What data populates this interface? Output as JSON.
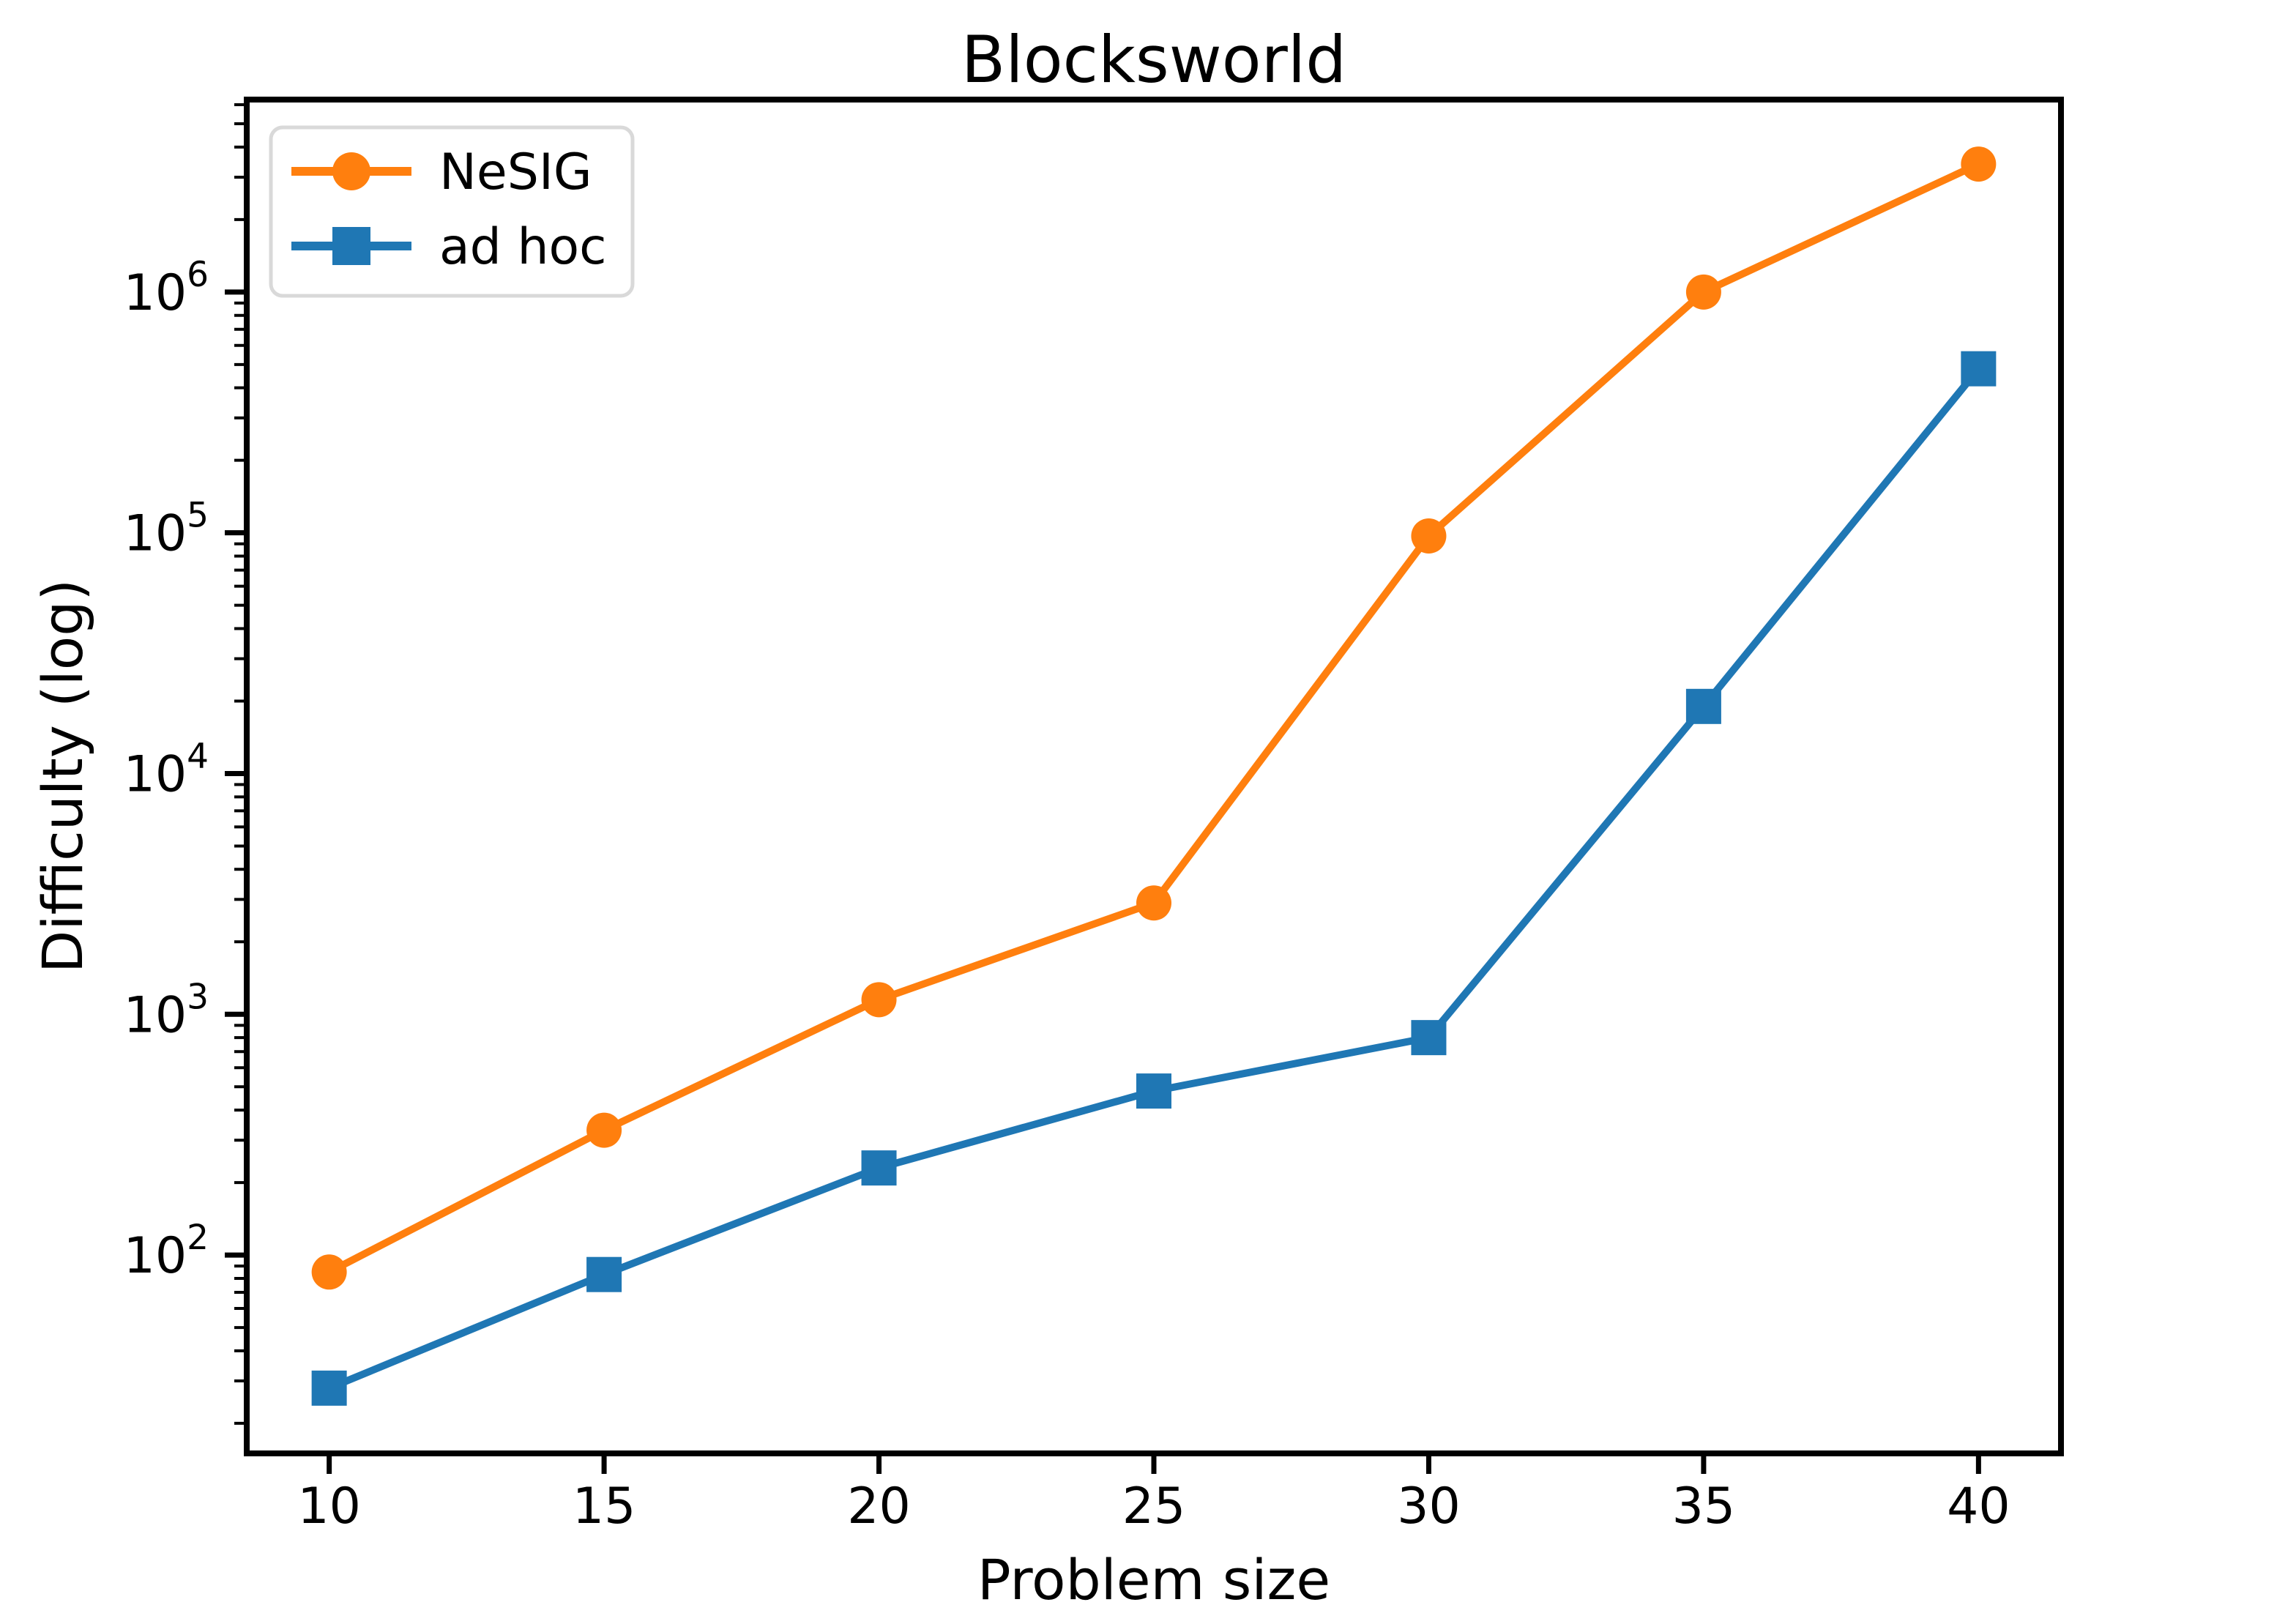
{
  "figure": {
    "background": "#ffffff",
    "axis_color": "#000000",
    "legend_border_color": "#d9d9d9",
    "legend_background": "#ffffff"
  },
  "chart_data": {
    "type": "line",
    "title": "Blocksworld",
    "xlabel": "Problem size",
    "ylabel": "Difficulty (log)",
    "yscale": "log",
    "grid": false,
    "legend_position": "upper left",
    "x": [
      10,
      15,
      20,
      25,
      30,
      35,
      40
    ],
    "x_tick_labels": [
      "10",
      "15",
      "20",
      "25",
      "30",
      "35",
      "40"
    ],
    "y_ticks": [
      {
        "base": "10",
        "sup": "2",
        "value": 100
      },
      {
        "base": "10",
        "sup": "3",
        "value": 1000
      },
      {
        "base": "10",
        "sup": "4",
        "value": 10000
      },
      {
        "base": "10",
        "sup": "5",
        "value": 100000
      },
      {
        "base": "10",
        "sup": "6",
        "value": 1000000
      }
    ],
    "xlim": [
      8.5,
      41.5
    ],
    "ylim": [
      15,
      6300000
    ],
    "series": [
      {
        "name": "NeSIG",
        "color": "#ff7f0e",
        "marker": "circle",
        "values": [
          85,
          330,
          1150,
          2900,
          97000,
          1000000,
          3400000
        ]
      },
      {
        "name": "ad hoc",
        "color": "#1f77b4",
        "marker": "square",
        "values": [
          28,
          83,
          230,
          480,
          800,
          19000,
          480000
        ]
      }
    ]
  }
}
